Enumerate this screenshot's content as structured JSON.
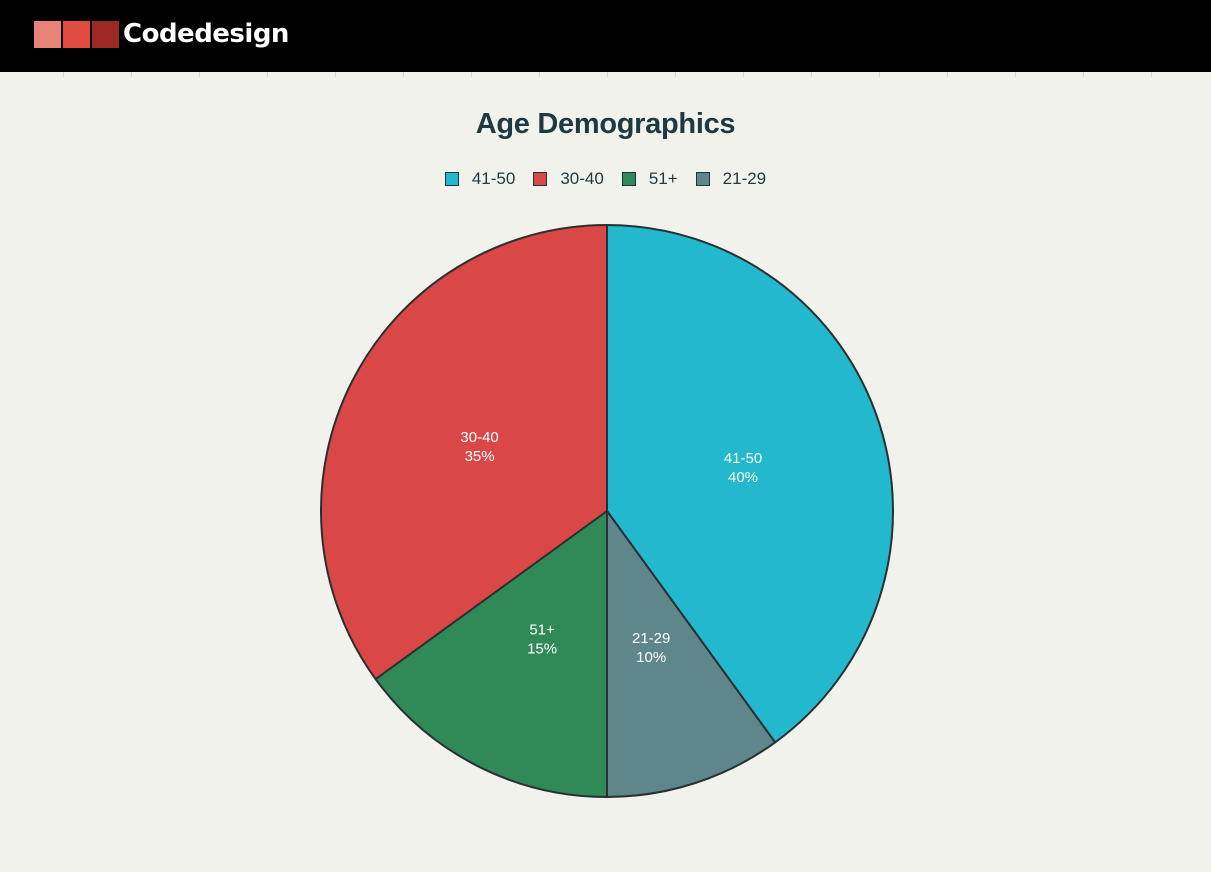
{
  "brand": {
    "name": "Codedesign",
    "colors": [
      "#e8837a",
      "#e04c3f",
      "#9c2a22"
    ]
  },
  "chart_data": {
    "type": "pie",
    "title": "Age Demographics",
    "legend_position": "top",
    "slices": [
      {
        "label": "41-50",
        "value": 40,
        "percent_label": "40%",
        "color": "#22b8ce"
      },
      {
        "label": "21-29",
        "value": 10,
        "percent_label": "10%",
        "color": "#5e868b"
      },
      {
        "label": "51+",
        "value": 15,
        "percent_label": "15%",
        "color": "#2f8a58"
      },
      {
        "label": "30-40",
        "value": 35,
        "percent_label": "35%",
        "color": "#da4747"
      }
    ],
    "legend_order": [
      "41-50",
      "30-40",
      "51+",
      "21-29"
    ]
  }
}
